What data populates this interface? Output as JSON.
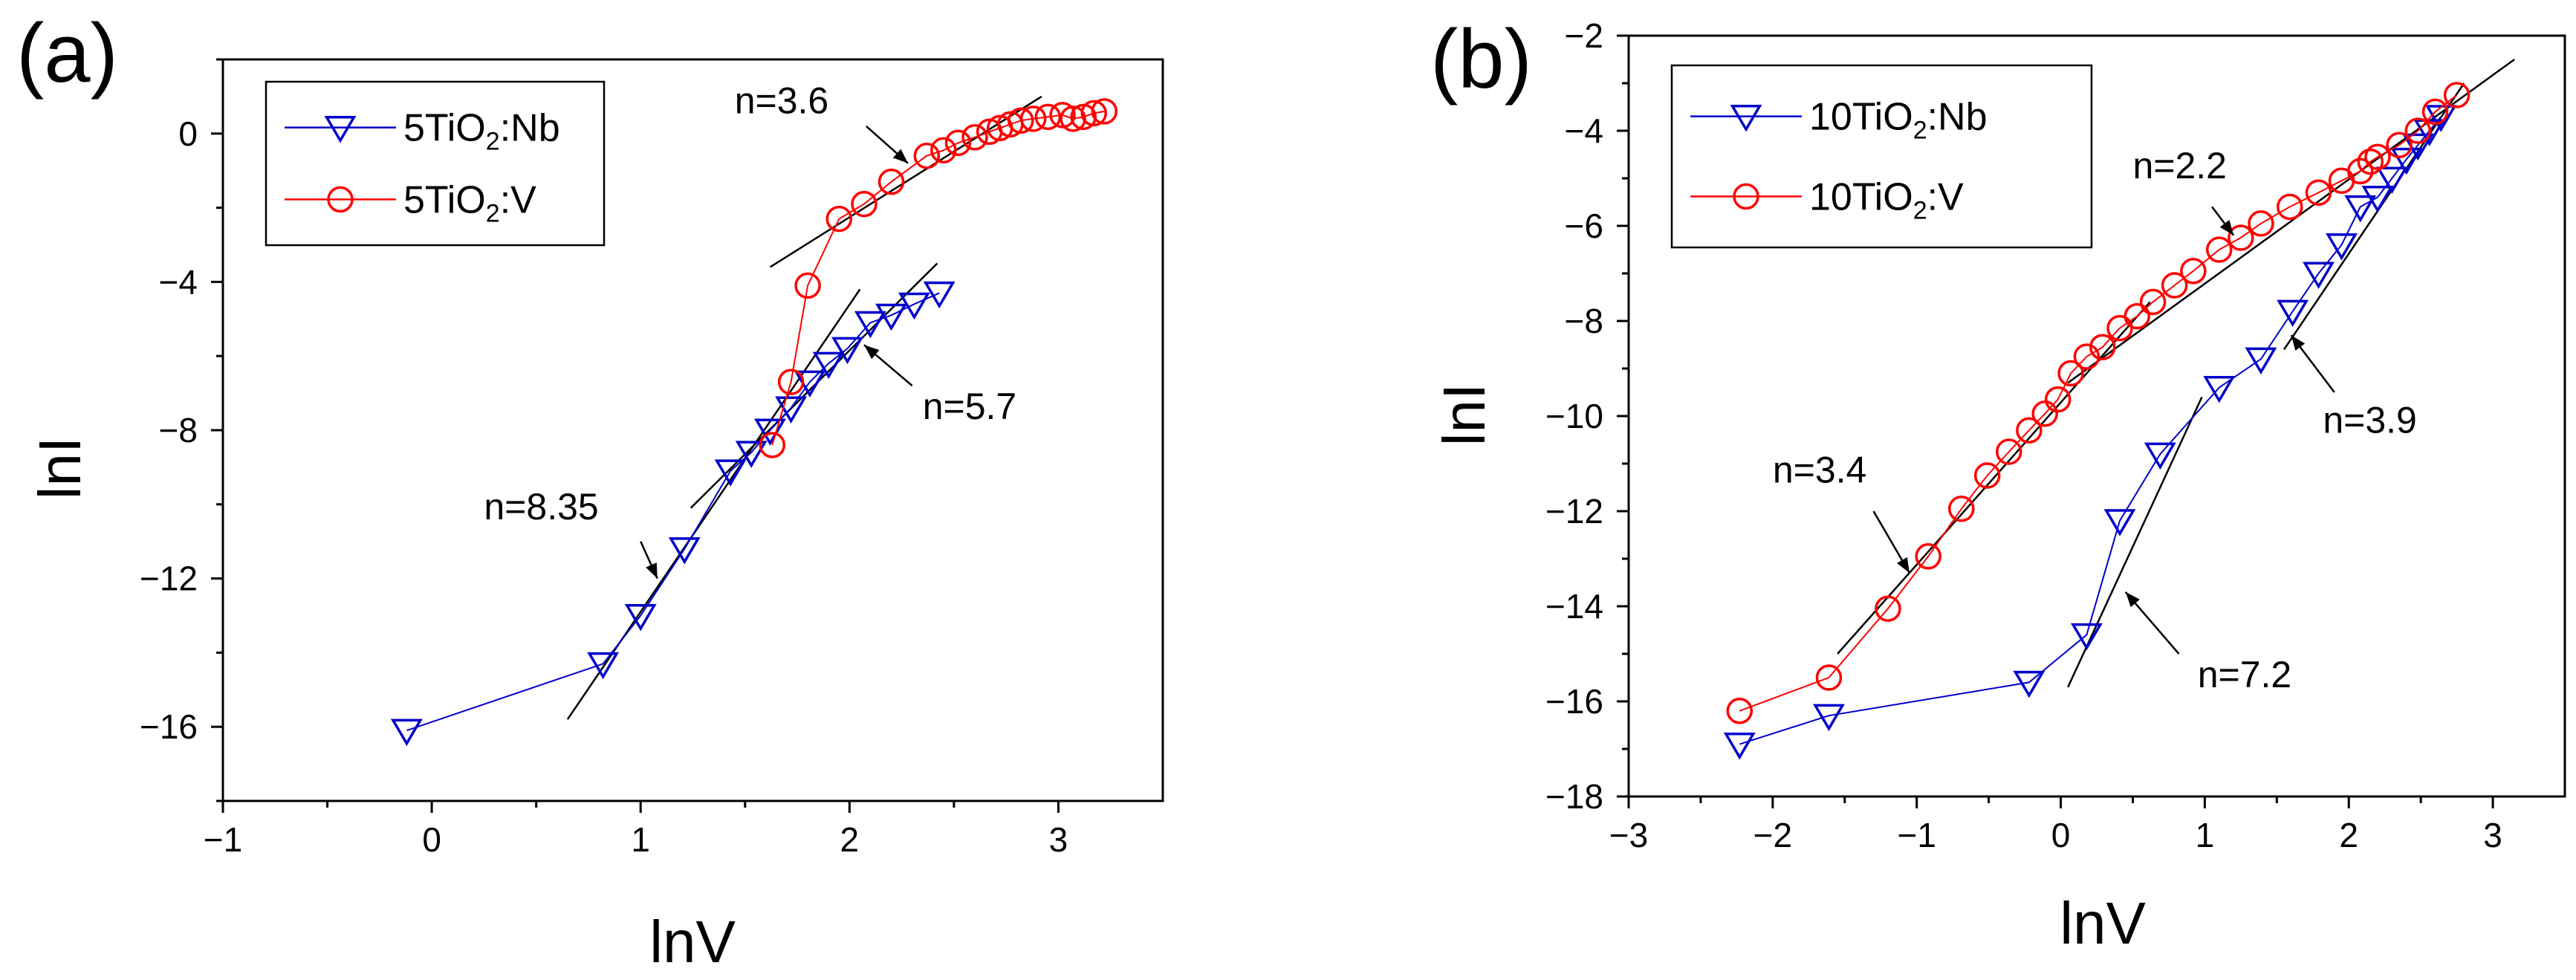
{
  "chart_data": [
    {
      "type": "scatter",
      "panel_label": "(a)",
      "xlabel": "lnV",
      "ylabel": "lnI",
      "xlim": [
        -1,
        3.5
      ],
      "ylim": [
        -18,
        2
      ],
      "xticks": [
        -1,
        0,
        1,
        2,
        3
      ],
      "yticks": [
        -16,
        -12,
        -8,
        -4,
        0
      ],
      "legend_position": "top-left",
      "series": [
        {
          "name": "5TiO2:Nb",
          "legend_main": "5TiO",
          "legend_sub": "2",
          "legend_rest": ":Nb",
          "color": "#0000cc",
          "marker": "triangle-down",
          "x": [
            -0.12,
            0.82,
            1.0,
            1.21,
            1.43,
            1.53,
            1.62,
            1.72,
            1.81,
            1.9,
            1.99,
            2.1,
            2.2,
            2.31,
            2.43
          ],
          "y": [
            -16.1,
            -14.3,
            -13.0,
            -11.2,
            -9.1,
            -8.6,
            -8.0,
            -7.4,
            -6.7,
            -6.2,
            -5.8,
            -5.1,
            -4.9,
            -4.6,
            -4.3
          ]
        },
        {
          "name": "5TiO2:V",
          "legend_main": "5TiO",
          "legend_sub": "2",
          "legend_rest": ":V",
          "color": "#ff0000",
          "marker": "circle",
          "x": [
            1.63,
            1.72,
            1.8,
            1.95,
            2.07,
            2.2,
            2.37,
            2.45,
            2.52,
            2.6,
            2.67,
            2.72,
            2.77,
            2.82,
            2.88,
            2.95,
            3.02,
            3.07,
            3.12,
            3.17,
            3.22
          ],
          "y": [
            -8.4,
            -6.7,
            -4.1,
            -2.3,
            -1.9,
            -1.3,
            -0.6,
            -0.45,
            -0.25,
            -0.1,
            0.05,
            0.15,
            0.25,
            0.35,
            0.4,
            0.45,
            0.5,
            0.4,
            0.45,
            0.55,
            0.6
          ]
        }
      ],
      "fit_lines": [
        {
          "x": [
            0.65,
            2.05
          ],
          "y": [
            -15.8,
            -4.2
          ]
        },
        {
          "x": [
            1.24,
            2.42
          ],
          "y": [
            -10.1,
            -3.5
          ]
        },
        {
          "x": [
            1.62,
            2.92
          ],
          "y": [
            -3.6,
            1.0
          ]
        }
      ],
      "annotations": [
        {
          "text": "n=8.35",
          "x": 0.25,
          "y": -10.4,
          "arrow_from": [
            1.0,
            -11.0
          ],
          "arrow_to": [
            1.08,
            -12.0
          ]
        },
        {
          "text": "n=5.7",
          "x": 2.35,
          "y": -7.7,
          "arrow_from": [
            2.3,
            -6.8
          ],
          "arrow_to": [
            2.07,
            -5.7
          ]
        },
        {
          "text": "n=3.6",
          "x": 1.45,
          "y": 0.55,
          "arrow_from": [
            2.08,
            0.2
          ],
          "arrow_to": [
            2.28,
            -0.8
          ]
        }
      ]
    },
    {
      "type": "scatter",
      "panel_label": "(b)",
      "xlabel": "lnV",
      "ylabel": "lnI",
      "xlim": [
        -3,
        3.5
      ],
      "ylim": [
        -18,
        -2
      ],
      "xticks": [
        -3,
        -2,
        -1,
        0,
        1,
        2,
        3
      ],
      "yticks": [
        -18,
        -16,
        -14,
        -12,
        -10,
        -8,
        -6,
        -4,
        -2
      ],
      "legend_position": "top-left",
      "series": [
        {
          "name": "10TiO2:Nb",
          "legend_main": "10TiO",
          "legend_sub": "2",
          "legend_rest": ":Nb",
          "color": "#0000cc",
          "marker": "triangle-down",
          "x": [
            -2.23,
            -1.61,
            -0.22,
            0.18,
            0.41,
            0.69,
            1.1,
            1.39,
            1.61,
            1.79,
            1.95,
            2.08,
            2.2,
            2.3,
            2.4,
            2.48,
            2.56,
            2.64
          ],
          "y": [
            -16.9,
            -16.3,
            -15.6,
            -14.6,
            -12.2,
            -10.8,
            -9.4,
            -8.8,
            -7.8,
            -7.0,
            -6.4,
            -5.6,
            -5.4,
            -5.0,
            -4.6,
            -4.3,
            -4.0,
            -3.7
          ]
        },
        {
          "name": "10TiO2:V",
          "legend_main": "10TiO",
          "legend_sub": "2",
          "legend_rest": ":V",
          "color": "#ff0000",
          "marker": "circle",
          "x": [
            -2.23,
            -1.61,
            -1.2,
            -0.92,
            -0.69,
            -0.51,
            -0.36,
            -0.22,
            -0.11,
            -0.02,
            0.07,
            0.18,
            0.29,
            0.41,
            0.53,
            0.64,
            0.79,
            0.92,
            1.1,
            1.25,
            1.39,
            1.59,
            1.79,
            1.95,
            2.08,
            2.15,
            2.2,
            2.35,
            2.48,
            2.6,
            2.75
          ],
          "y": [
            -16.2,
            -15.5,
            -14.05,
            -12.95,
            -11.95,
            -11.25,
            -10.75,
            -10.3,
            -9.95,
            -9.65,
            -9.1,
            -8.75,
            -8.55,
            -8.15,
            -7.9,
            -7.6,
            -7.25,
            -6.95,
            -6.5,
            -6.25,
            -5.95,
            -5.6,
            -5.3,
            -5.05,
            -4.85,
            -4.65,
            -4.55,
            -4.3,
            -4.0,
            -3.6,
            -3.25
          ]
        }
      ],
      "fit_lines": [
        {
          "x": [
            -1.55,
            0.62
          ],
          "y": [
            -15.0,
            -7.6
          ]
        },
        {
          "x": [
            0.05,
            3.15
          ],
          "y": [
            -9.3,
            -2.5
          ]
        },
        {
          "x": [
            0.05,
            0.98
          ],
          "y": [
            -15.7,
            -9.6
          ]
        },
        {
          "x": [
            1.55,
            2.8
          ],
          "y": [
            -8.6,
            -3.0
          ]
        }
      ],
      "annotations": [
        {
          "text": "n=3.4",
          "x": -2.0,
          "y": -11.4,
          "arrow_from": [
            -1.3,
            -12.0
          ],
          "arrow_to": [
            -1.05,
            -13.3
          ]
        },
        {
          "text": "n=2.2",
          "x": 0.5,
          "y": -5.0,
          "arrow_from": [
            1.05,
            -5.6
          ],
          "arrow_to": [
            1.2,
            -6.2
          ]
        },
        {
          "text": "n=3.9",
          "x": 1.82,
          "y": -10.35,
          "arrow_from": [
            1.9,
            -9.5
          ],
          "arrow_to": [
            1.6,
            -8.3
          ]
        },
        {
          "text": "n=7.2",
          "x": 0.95,
          "y": -15.7,
          "arrow_from": [
            0.82,
            -15.0
          ],
          "arrow_to": [
            0.45,
            -13.7
          ]
        }
      ]
    }
  ]
}
